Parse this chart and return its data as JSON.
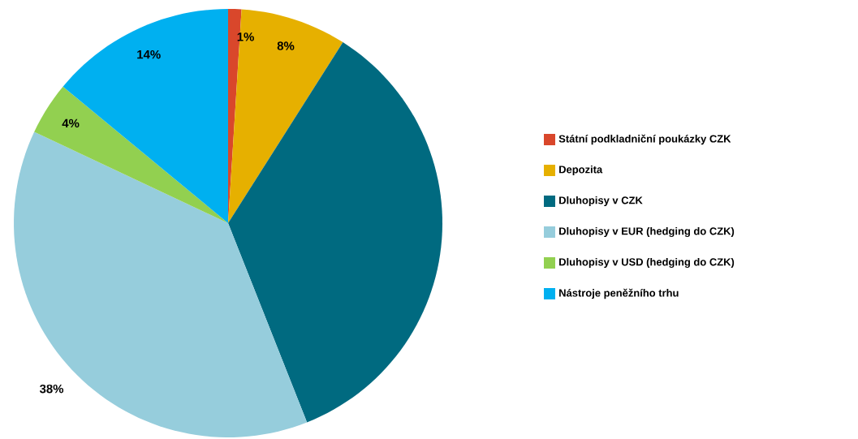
{
  "chart_data": {
    "type": "pie",
    "categories": [
      "Státní podkladniční poukázky CZK",
      "Depozita",
      "Dluhopisy v CZK",
      "Dluhopisy v EUR (hedging do CZK)",
      "Dluhopisy v USD (hedging do CZK)",
      "Nástroje peněžního trhu"
    ],
    "values": [
      1,
      8,
      35,
      38,
      4,
      14
    ],
    "colors": [
      "#d9472b",
      "#e6b000",
      "#006a80",
      "#96cddc",
      "#92d050",
      "#00b0f0"
    ],
    "value_labels": [
      "1%",
      "8%",
      null,
      "38%",
      "4%",
      "14%"
    ],
    "legend": "right"
  }
}
